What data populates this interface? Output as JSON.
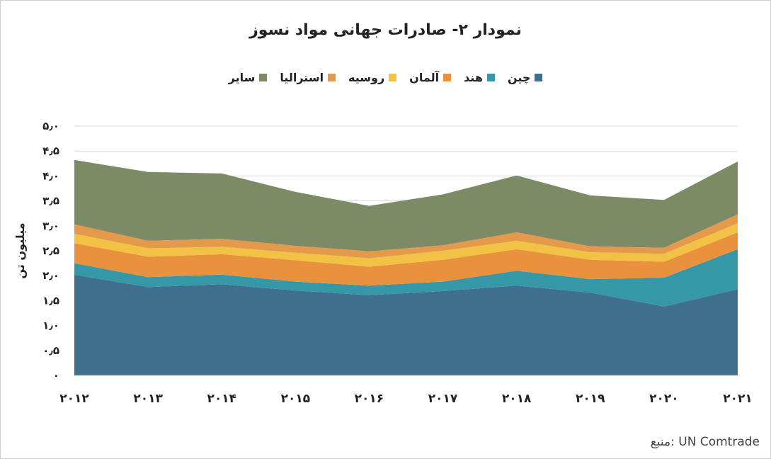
{
  "chart_data": {
    "type": "area",
    "stacked": true,
    "title": "نمودار ۲- صادرات جهانی مواد نسوز",
    "ylabel": "میلیون تن",
    "ylim": [
      0,
      5.0
    ],
    "y_ticks": [
      "۰",
      "۰٫۵",
      "۱٫۰",
      "۱٫۵",
      "۲٫۰",
      "۲٫۵",
      "۳٫۰",
      "۳٫۵",
      "۴٫۰",
      "۴٫۵",
      "۵٫۰"
    ],
    "x": [
      "۲۰۱۲",
      "۲۰۱۳",
      "۲۰۱۴",
      "۲۰۱۵",
      "۲۰۱۶",
      "۲۰۱۷",
      "۲۰۱۸",
      "۲۰۱۹",
      "۲۰۲۰",
      "۲۰۲۱"
    ],
    "legend_position": "top",
    "grid": true,
    "series": [
      {
        "name": "چین",
        "color": "#3e6f8c",
        "values": [
          2.02,
          1.77,
          1.83,
          1.7,
          1.61,
          1.69,
          1.8,
          1.66,
          1.38,
          1.73
        ]
      },
      {
        "name": "هند",
        "color": "#3697a6",
        "values": [
          0.23,
          0.2,
          0.19,
          0.18,
          0.19,
          0.19,
          0.3,
          0.27,
          0.58,
          0.8
        ]
      },
      {
        "name": "آلمان",
        "color": "#e9913c",
        "values": [
          0.4,
          0.41,
          0.41,
          0.43,
          0.38,
          0.44,
          0.43,
          0.39,
          0.32,
          0.34
        ]
      },
      {
        "name": "روسیه",
        "color": "#f2c245",
        "values": [
          0.19,
          0.17,
          0.15,
          0.15,
          0.17,
          0.18,
          0.17,
          0.15,
          0.16,
          0.18
        ]
      },
      {
        "name": "استرالیا",
        "color": "#e49a4a",
        "values": [
          0.19,
          0.15,
          0.16,
          0.14,
          0.14,
          0.11,
          0.17,
          0.12,
          0.12,
          0.18
        ]
      },
      {
        "name": "سایر",
        "color": "#7d8a66",
        "values": [
          1.29,
          1.38,
          1.31,
          1.08,
          0.91,
          1.02,
          1.14,
          1.02,
          0.96,
          1.06
        ]
      }
    ]
  },
  "source": "منبع: UN Comtrade"
}
